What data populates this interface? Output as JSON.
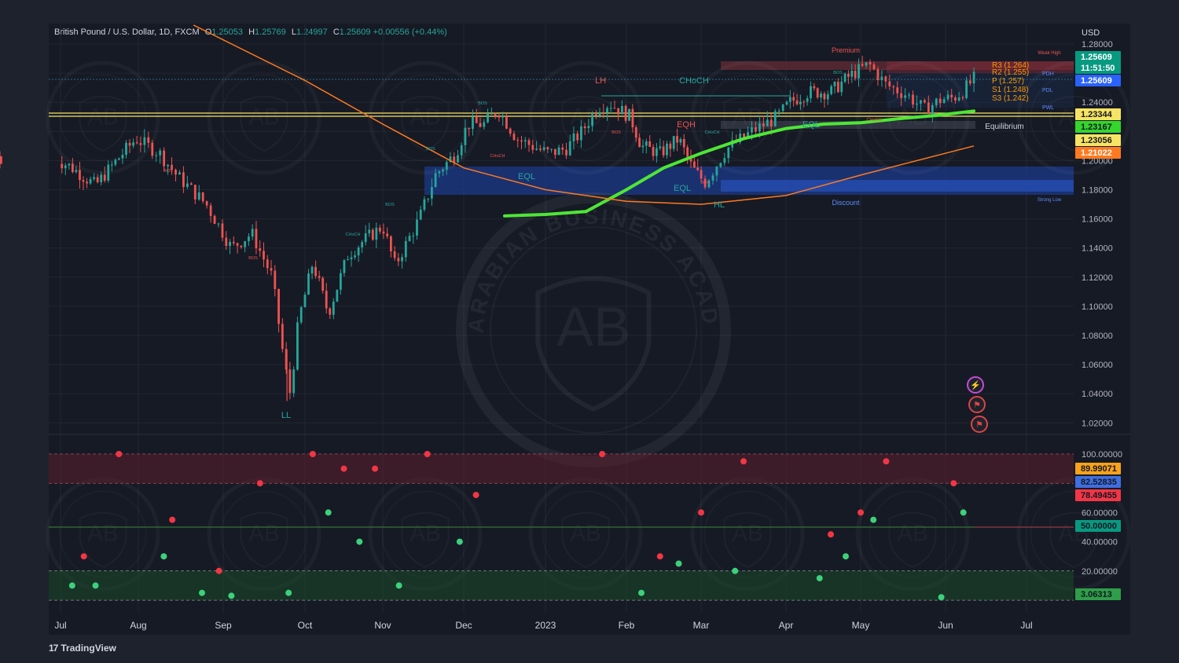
{
  "header": {
    "symbol": "British Pound / U.S. Dollar, 1D, FXCM",
    "open_label": "O",
    "open": "1.25053",
    "high_label": "H",
    "high": "1.25769",
    "low_label": "L",
    "low": "1.24997",
    "close_label": "C",
    "close": "1.25609",
    "change": "+0.00556 (+0.44%)"
  },
  "currency": "USD",
  "brand": "TradingView",
  "colors": {
    "up": "#26a69a",
    "down": "#ef5350",
    "ema_red": "#e53935",
    "ema_green": "#4caf50",
    "orange": "#ff7a1f",
    "yellow": "#f7e463",
    "stoch_k": "#f7a21b",
    "stoch_d": "#3f6fe0"
  },
  "chart_data": [
    {
      "type": "line",
      "title": "British Pound / U.S. Dollar, 1D, FXCM",
      "ylim": [
        1.0,
        1.29
      ],
      "y_ticks": [
        "1.28000",
        "1.24000",
        "1.20000",
        "1.18000",
        "1.16000",
        "1.14000",
        "1.12000",
        "1.10000",
        "1.08000",
        "1.06000",
        "1.04000",
        "1.02000"
      ],
      "x_ticks": [
        "Jul",
        "Aug",
        "Sep",
        "Oct",
        "Nov",
        "Dec",
        "2023",
        "Feb",
        "Mar",
        "Apr",
        "May",
        "Jun",
        "Jul"
      ],
      "price_labels": [
        {
          "value": "1.25609",
          "color": "#089981"
        },
        {
          "value": "11:51:50",
          "color": "#089981"
        },
        {
          "value": "1.25609",
          "color": "#2962ff"
        },
        {
          "value": "1.23344",
          "color": "#f7e463"
        },
        {
          "value": "1.23167",
          "color": "#33d62b"
        },
        {
          "value": "1.23056",
          "color": "#f7e463"
        },
        {
          "value": "1.21022",
          "color": "#ff7a1f"
        }
      ],
      "close_price": 1.25609,
      "series": [
        {
          "name": "price",
          "x": [
            "Jul",
            "Aug",
            "Sep",
            "Oct",
            "Nov",
            "Dec",
            "2023",
            "Feb",
            "Mar",
            "Apr",
            "May",
            "Jun"
          ],
          "values": [
            1.2,
            1.215,
            1.16,
            1.07,
            1.155,
            1.215,
            1.21,
            1.23,
            1.205,
            1.245,
            1.26,
            1.256
          ]
        }
      ],
      "annotations": [
        "LL",
        "LH",
        "CHoCH",
        "EQH",
        "EQL",
        "EQL",
        "EQL",
        "HL",
        "Premium",
        "Discount",
        "Equilibrium",
        "Weak High",
        "Strong Low",
        "BOS",
        "CHoCH",
        "R3 (1.264)",
        "R2 (1.255)",
        "P (1.257)",
        "S1 (1.248)",
        "S3 (1.242)",
        "PDH",
        "PDL",
        "PWL"
      ],
      "watermark": "ARABIAN BUSINESS ACADEMY",
      "watermark_logo": "AB"
    },
    {
      "type": "line",
      "title": "",
      "ylim": [
        0,
        100
      ],
      "y_ticks": [
        "100.00000",
        "60.00000",
        "40.00000",
        "20.00000"
      ],
      "levels": [
        100,
        80,
        50,
        20,
        0
      ],
      "value_labels": [
        {
          "value": "89.99071",
          "color": "#f7a21b"
        },
        {
          "value": "82.52835",
          "color": "#3f6fe0"
        },
        {
          "value": "78.49455",
          "color": "#f23645"
        },
        {
          "value": "50.00000",
          "color": "#089981"
        },
        {
          "value": "3.06313",
          "color": "#2e9e48"
        }
      ],
      "series": [
        {
          "name": "K",
          "x": [
            "Jul",
            "Aug",
            "Sep",
            "Oct",
            "Nov",
            "Dec",
            "2023",
            "Feb",
            "Mar",
            "Apr",
            "May",
            "Jun"
          ],
          "values": [
            70,
            100,
            12,
            100,
            18,
            100,
            2,
            100,
            52,
            95,
            25,
            90
          ]
        }
      ]
    }
  ]
}
